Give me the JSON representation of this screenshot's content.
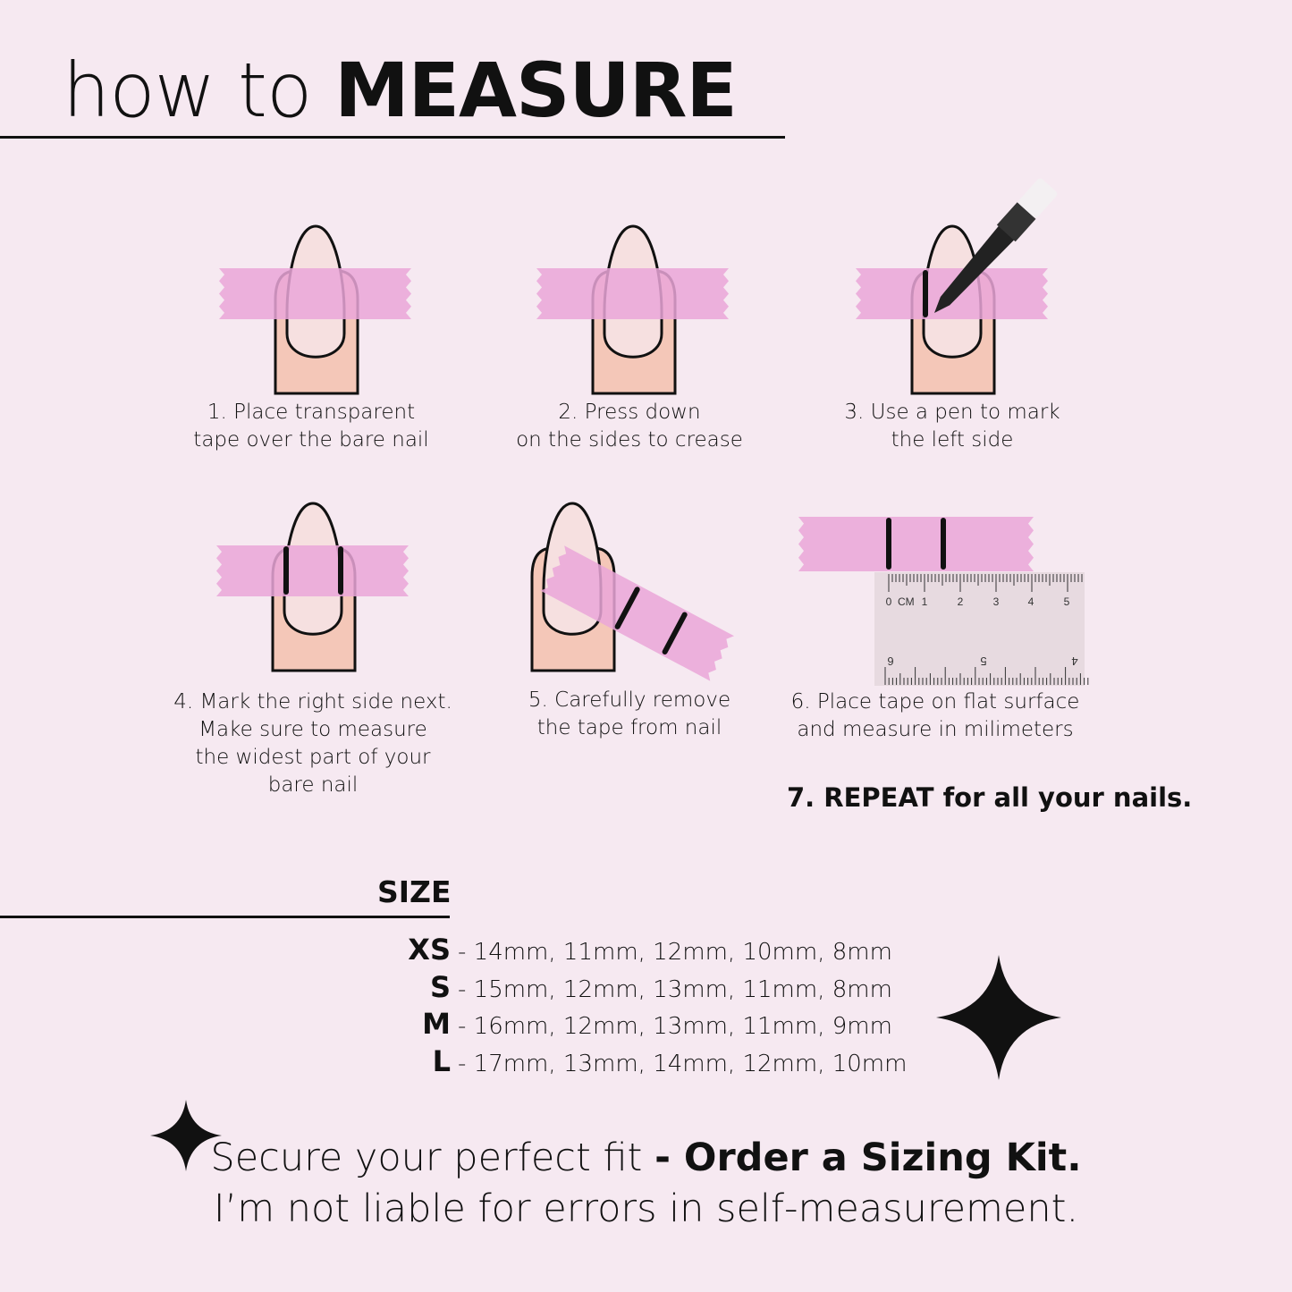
{
  "title": {
    "light": "how to ",
    "bold": "MEASURE"
  },
  "steps": [
    {
      "line1": "1. Place transparent",
      "line2": "tape over the bare nail"
    },
    {
      "line1": "2. Press down",
      "line2": "on the sides to crease"
    },
    {
      "line1": "3. Use a pen to mark",
      "line2": "the left side"
    },
    {
      "line1": "4. Mark the right side next.",
      "line2": "Make sure to measure",
      "line3": "the widest part of your",
      "line4": "bare nail"
    },
    {
      "line1": "5. Carefully remove",
      "line2": "the tape from nail"
    },
    {
      "line1": "6. Place tape on flat surface",
      "line2": "and measure in milimeters"
    }
  ],
  "repeat": "7. REPEAT for all your nails.",
  "ruler": {
    "unit": "CM",
    "top_ticks": [
      "0",
      "1",
      "2",
      "3",
      "4",
      "5"
    ],
    "bottom_ticks": [
      "6",
      "5",
      "4"
    ]
  },
  "size": {
    "heading": "SIZE",
    "rows": [
      {
        "label": "XS",
        "values": "- 14mm, 11mm, 12mm, 10mm, 8mm"
      },
      {
        "label": "S",
        "values": "- 15mm, 12mm, 13mm, 11mm, 8mm"
      },
      {
        "label": "M",
        "values": "- 16mm, 12mm, 13mm, 11mm, 9mm"
      },
      {
        "label": "L",
        "values": "- 17mm, 13mm, 14mm, 12mm, 10mm"
      }
    ]
  },
  "footer": {
    "line1_light": "Secure your perfect fit ",
    "line1_bold": "- Order a Sizing Kit.",
    "line2": "I’m not liable for errors in self-measurement."
  },
  "colors": {
    "background": "#f6e9f1",
    "tape": "#eaa6d8",
    "skin": "#f4c7b8",
    "nail": "#f6e0e0",
    "ink": "#111111"
  },
  "icons": [
    "sparkle-icon",
    "pen-icon",
    "ruler-icon"
  ]
}
